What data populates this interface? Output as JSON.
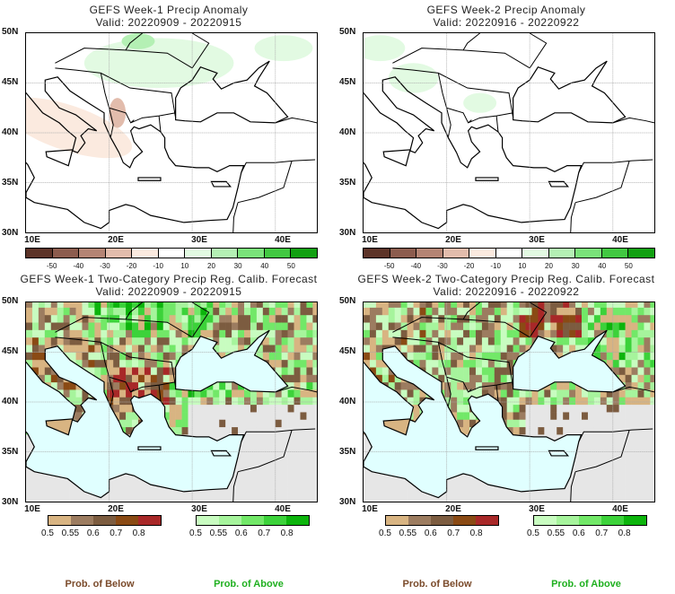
{
  "panels": [
    {
      "title": "GEFS Week-1 Precip Anomaly",
      "valid": "Valid: 20220909 - 20220915",
      "kind": "anomaly"
    },
    {
      "title": "GEFS Week-2 Precip Anomaly",
      "valid": "Valid: 20220916 - 20220922",
      "kind": "anomaly"
    },
    {
      "title": "GEFS Week-1 Two-Category Precip Reg. Calib. Forecast",
      "valid": "Valid: 20220909 - 20220915",
      "kind": "prob"
    },
    {
      "title": "GEFS Week-2 Two-Category Precip Reg. Calib. Forecast",
      "valid": "Valid: 20220916 - 20220922",
      "kind": "prob"
    }
  ],
  "axes": {
    "lat": [
      "50N",
      "45N",
      "40N",
      "35N",
      "30N"
    ],
    "lon": [
      "10E",
      "20E",
      "30E",
      "40E"
    ]
  },
  "anomaly_colorbar": {
    "ticks": [
      "-50",
      "-40",
      "-30",
      "-20",
      "-10",
      "10",
      "20",
      "30",
      "40",
      "50"
    ],
    "colors": [
      "#5c3328",
      "#8c5c4e",
      "#b48474",
      "#e2bcac",
      "#fbeadf",
      "#ffffff",
      "#e2fae2",
      "#b4f0b4",
      "#7ae27a",
      "#42c842",
      "#12a012"
    ]
  },
  "below_colorbar": {
    "ticks": [
      "0.5",
      "0.55",
      "0.6",
      "0.7",
      "0.8"
    ],
    "colors": [
      "#d8b482",
      "#9c7c60",
      "#7c5c40",
      "#8a4a14",
      "#a82828"
    ]
  },
  "above_colorbar": {
    "ticks": [
      "0.5",
      "0.55",
      "0.6",
      "0.7",
      "0.8"
    ],
    "colors": [
      "#c8fcc0",
      "#a6f49c",
      "#72e868",
      "#3cd23a",
      "#0cb40c"
    ]
  },
  "legend": {
    "below": "Prob. of Below",
    "above": "Prob. of Above",
    "below_color": "#7a4a2a",
    "above_color": "#20b020"
  }
}
